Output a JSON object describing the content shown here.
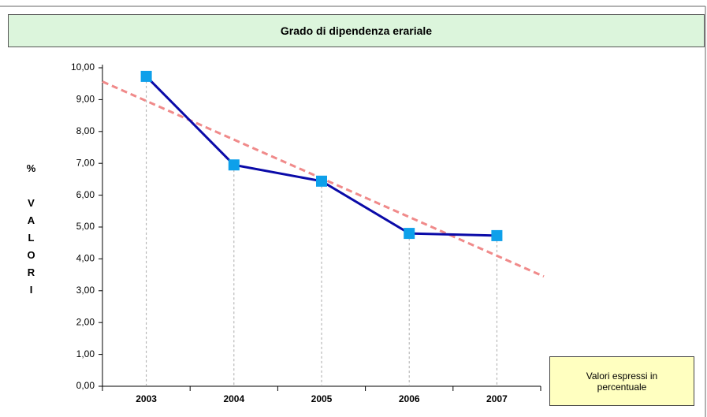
{
  "chart_data": {
    "type": "line",
    "title": "Grado di dipendenza erariale",
    "y_label": "% VALORI",
    "note": "Valori espressi in percentuale",
    "categories": [
      "2003",
      "2004",
      "2005",
      "2006",
      "2007"
    ],
    "series": [
      {
        "name": "Grado di dipendenza erariale",
        "color": "#0a0aa8",
        "marker_color": "#0ea0ea",
        "values": [
          9.73,
          6.95,
          6.44,
          4.8,
          4.73
        ]
      }
    ],
    "trendline": true,
    "trendline_color": "#f08a8a",
    "ylim": [
      0,
      10
    ],
    "yticks": [
      {
        "value": 0,
        "label": "0,00"
      },
      {
        "value": 1,
        "label": "1,00"
      },
      {
        "value": 2,
        "label": "2,00"
      },
      {
        "value": 3,
        "label": "3,00"
      },
      {
        "value": 4,
        "label": "4,00"
      },
      {
        "value": 5,
        "label": "5,00"
      },
      {
        "value": 6,
        "label": "6,00"
      },
      {
        "value": 7,
        "label": "7,00"
      },
      {
        "value": 8,
        "label": "8,00"
      },
      {
        "value": 9,
        "label": "9,00"
      },
      {
        "value": 10,
        "label": "10,00"
      }
    ]
  }
}
